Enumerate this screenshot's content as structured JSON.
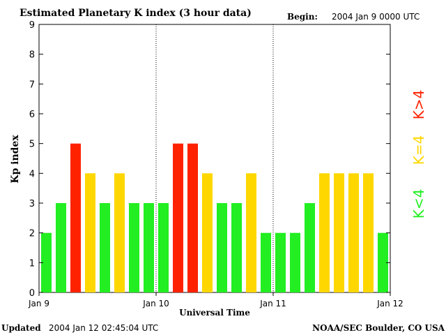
{
  "header": {
    "title": "Estimated Planetary K index (3 hour data)",
    "begin_label": "Begin:",
    "begin_value": "2004 Jan 9 0000 UTC"
  },
  "footer": {
    "updated_label": "Updated",
    "updated_value": "2004 Jan 12 02:45:04 UTC",
    "source": "NOAA/SEC Boulder, CO USA"
  },
  "legend": {
    "high": "K>4",
    "mid": "K=4",
    "low": "K<4"
  },
  "colors": {
    "low": "#22ee22",
    "mid": "#ffd700",
    "high": "#ff2200",
    "frame": "#000000"
  },
  "chart_data": {
    "type": "bar",
    "ylabel": "Kp index",
    "xlabel": "Universal Time",
    "ylim": [
      0,
      9
    ],
    "y_ticks": [
      "0",
      "1",
      "2",
      "3",
      "4",
      "5",
      "6",
      "7",
      "8",
      "9"
    ],
    "x_tick_labels": [
      "Jan 9",
      "Jan 10",
      "Jan 11",
      "Jan 12"
    ],
    "day_separators": [
      "Jan 10",
      "Jan 11"
    ],
    "categories": [
      "Jan 9 00",
      "Jan 9 03",
      "Jan 9 06",
      "Jan 9 09",
      "Jan 9 12",
      "Jan 9 15",
      "Jan 9 18",
      "Jan 9 21",
      "Jan 10 00",
      "Jan 10 03",
      "Jan 10 06",
      "Jan 10 09",
      "Jan 10 12",
      "Jan 10 15",
      "Jan 10 18",
      "Jan 10 21",
      "Jan 11 00",
      "Jan 11 03",
      "Jan 11 06",
      "Jan 11 09",
      "Jan 11 12",
      "Jan 11 15",
      "Jan 11 18",
      "Jan 11 21"
    ],
    "values": [
      2,
      3,
      5,
      4,
      3,
      4,
      3,
      3,
      3,
      5,
      5,
      4,
      3,
      3,
      4,
      2,
      2,
      2,
      3,
      4,
      4,
      4,
      4,
      2
    ],
    "color_rule": "K<4 green, K=4 yellow, K>4 red"
  }
}
